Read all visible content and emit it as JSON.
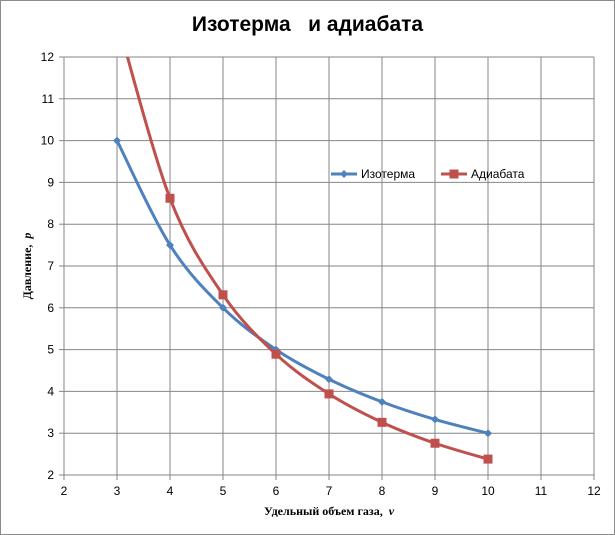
{
  "chart_data": {
    "type": "line",
    "title": "Изотерма   и адиабата",
    "xlabel": "Удельный объем газа,",
    "xlabel_var": "v",
    "ylabel": "Давление,",
    "ylabel_var": "p",
    "xlim": [
      2,
      12
    ],
    "ylim": [
      2,
      12
    ],
    "x_ticks": [
      2,
      3,
      4,
      5,
      6,
      7,
      8,
      9,
      10,
      11,
      12
    ],
    "y_ticks": [
      2,
      3,
      4,
      5,
      6,
      7,
      8,
      9,
      10,
      11,
      12
    ],
    "grid": true,
    "legend_position": "right-middle",
    "series": [
      {
        "name": "Изотерма",
        "color": "#4f81bd",
        "marker": "diamond",
        "x": [
          3,
          4,
          5,
          6,
          7,
          8,
          9,
          10
        ],
        "y": [
          10,
          7.5,
          6,
          5,
          4.29,
          3.75,
          3.33,
          3
        ]
      },
      {
        "name": "Адиабата",
        "color": "#c0504d",
        "marker": "square",
        "x": [
          3,
          4,
          5,
          6,
          7,
          8,
          9,
          10
        ],
        "y": [
          12.9,
          8.62,
          6.31,
          4.89,
          3.94,
          3.26,
          2.76,
          2.38
        ]
      }
    ]
  }
}
